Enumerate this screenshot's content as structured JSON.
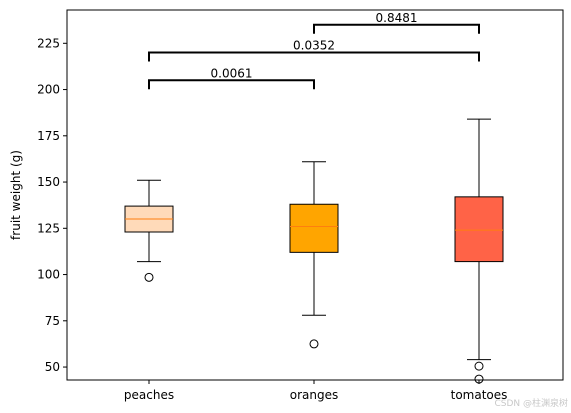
{
  "chart_data": {
    "type": "boxplot",
    "ylabel": "fruit weight (g)",
    "ylim": [
      43,
      243
    ],
    "yticks": [
      50,
      75,
      100,
      125,
      150,
      175,
      200,
      225
    ],
    "categories": [
      "peaches",
      "oranges",
      "tomatoes"
    ],
    "boxes": [
      {
        "name": "peaches",
        "whisker_low": 107,
        "q1": 123,
        "median": 130,
        "q3": 137,
        "whisker_high": 151,
        "outliers": [
          98.5
        ],
        "color": "#ffdab9"
      },
      {
        "name": "oranges",
        "whisker_low": 78,
        "q1": 112,
        "median": 126,
        "q3": 138,
        "whisker_high": 161,
        "outliers": [
          62.5
        ],
        "color": "#ffa500"
      },
      {
        "name": "tomatoes",
        "whisker_low": 54,
        "q1": 107,
        "median": 124,
        "q3": 142,
        "whisker_high": 184,
        "outliers": [
          50.5,
          43.5
        ],
        "color": "#ff6347"
      }
    ],
    "significance": [
      {
        "from": 0,
        "to": 1,
        "y": 205,
        "label": "0.0061"
      },
      {
        "from": 0,
        "to": 2,
        "y": 220,
        "label": "0.0352"
      },
      {
        "from": 1,
        "to": 2,
        "y": 235,
        "label": "0.8481"
      }
    ],
    "median_color": "#ff7f0e",
    "watermark": "CSDN @柱渊泉树"
  }
}
